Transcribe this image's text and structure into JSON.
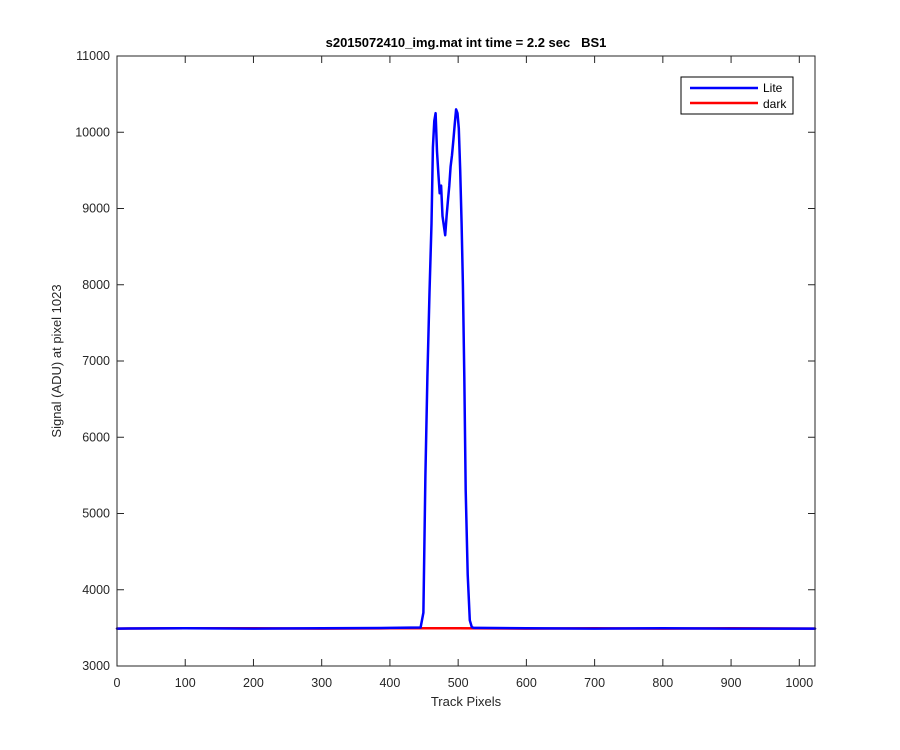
{
  "chart_data": {
    "type": "line",
    "title": "s2015072410_img.mat int time = 2.2 sec   BS1",
    "xlabel": "Track Pixels",
    "ylabel": "Signal (ADU) at pixel 1023",
    "xlim": [
      0,
      1023
    ],
    "ylim": [
      3000,
      11000
    ],
    "x_ticks": [
      0,
      100,
      200,
      300,
      400,
      500,
      600,
      700,
      800,
      900,
      1000
    ],
    "y_ticks": [
      3000,
      4000,
      5000,
      6000,
      7000,
      8000,
      9000,
      10000,
      11000
    ],
    "grid": false,
    "legend_position": "top-right",
    "series": [
      {
        "name": "Lite",
        "color": "#0000ff",
        "x": [
          0,
          100,
          200,
          300,
          400,
          445,
          449,
          452,
          455,
          458,
          461,
          463,
          465,
          467,
          469,
          471,
          473,
          475,
          477,
          479,
          481,
          483,
          485,
          487,
          489,
          491,
          493,
          495,
          497,
          499,
          501,
          503,
          505,
          507,
          509,
          511,
          514,
          517,
          520,
          523,
          530,
          600,
          700,
          800,
          900,
          1023
        ],
        "y": [
          3490,
          3495,
          3490,
          3495,
          3500,
          3505,
          3700,
          5500,
          6800,
          7900,
          8800,
          9800,
          10150,
          10250,
          9750,
          9450,
          9200,
          9300,
          8900,
          8780,
          8650,
          8900,
          9100,
          9300,
          9550,
          9700,
          9900,
          10100,
          10300,
          10250,
          10050,
          9500,
          8800,
          8000,
          6800,
          5300,
          4200,
          3600,
          3510,
          3500,
          3500,
          3495,
          3490,
          3495,
          3490,
          3490
        ]
      },
      {
        "name": "dark",
        "color": "#ff0000",
        "x": [
          0,
          100,
          200,
          300,
          400,
          500,
          600,
          700,
          800,
          900,
          1023
        ],
        "y": [
          3490,
          3495,
          3495,
          3490,
          3495,
          3495,
          3490,
          3495,
          3490,
          3495,
          3490
        ]
      }
    ]
  }
}
